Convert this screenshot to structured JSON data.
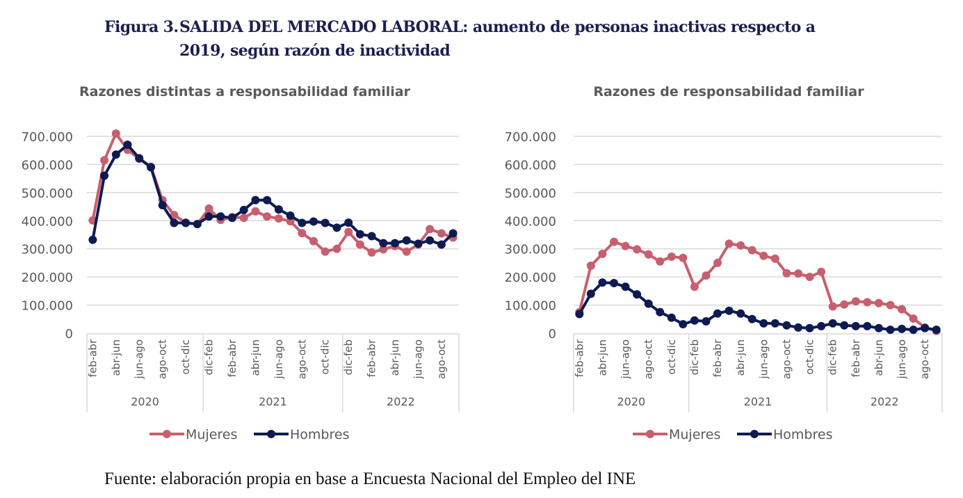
{
  "figure": {
    "number_label": "Figura 3.",
    "title_line1": "SALIDA DEL MERCADO LABORAL: aumento de personas inactivas respecto a",
    "title_line2": "2019, según razón de inactividad"
  },
  "footer": {
    "source_label": "Fuente:",
    "source_text": " elaboración propia en base a Encuesta Nacional del Empleo del INE"
  },
  "colors": {
    "mujeres": "#c85f6e",
    "hombres": "#0e1a52",
    "grid": "#d9d9d9",
    "text": "#595959"
  },
  "chart_data": [
    {
      "type": "line",
      "title": "Razones distintas a responsabilidad familiar",
      "xlabel": "",
      "ylabel": "",
      "ylim": [
        0,
        700000
      ],
      "yticks": [
        0,
        100000,
        200000,
        300000,
        400000,
        500000,
        600000,
        700000
      ],
      "ytick_labels": [
        "0",
        "100.000",
        "200.000",
        "300.000",
        "400.000",
        "500.000",
        "600.000",
        "700.000"
      ],
      "grid": true,
      "legend": "bottom",
      "n_points": 32,
      "x_tick_labels": [
        {
          "index": 0,
          "label": "feb-abr"
        },
        {
          "index": 2,
          "label": "abr-jun"
        },
        {
          "index": 4,
          "label": "jun-ago"
        },
        {
          "index": 6,
          "label": "ago-oct"
        },
        {
          "index": 8,
          "label": "oct-dic"
        },
        {
          "index": 10,
          "label": "dic-feb"
        },
        {
          "index": 12,
          "label": "feb-abr"
        },
        {
          "index": 14,
          "label": "abr-jun"
        },
        {
          "index": 16,
          "label": "jun-ago"
        },
        {
          "index": 18,
          "label": "ago-oct"
        },
        {
          "index": 20,
          "label": "oct-dic"
        },
        {
          "index": 22,
          "label": "dic-feb"
        },
        {
          "index": 24,
          "label": "feb-abr"
        },
        {
          "index": 26,
          "label": "abr-jun"
        },
        {
          "index": 28,
          "label": "jun-ago"
        },
        {
          "index": 30,
          "label": "ago-oct"
        }
      ],
      "year_groups": [
        {
          "label": "2020",
          "start": 0,
          "end": 9
        },
        {
          "label": "2021",
          "start": 10,
          "end": 21
        },
        {
          "label": "2022",
          "start": 22,
          "end": 31
        }
      ],
      "series": [
        {
          "name": "Mujeres",
          "color": "#c85f6e",
          "values": [
            401000,
            615000,
            710000,
            652000,
            620000,
            592000,
            473000,
            420000,
            393000,
            388000,
            443000,
            403000,
            413000,
            410000,
            433000,
            415000,
            408000,
            398000,
            356000,
            327000,
            290000,
            300000,
            360000,
            315000,
            287000,
            298000,
            310000,
            290000,
            315000,
            370000,
            355000,
            340000
          ]
        },
        {
          "name": "Hombres",
          "color": "#0e1a52",
          "values": [
            332000,
            560000,
            635000,
            670000,
            622000,
            590000,
            455000,
            392000,
            392000,
            388000,
            415000,
            415000,
            410000,
            438000,
            473000,
            473000,
            440000,
            418000,
            392000,
            397000,
            392000,
            375000,
            393000,
            352000,
            345000,
            320000,
            320000,
            330000,
            318000,
            330000,
            315000,
            355000
          ]
        }
      ]
    },
    {
      "type": "line",
      "title": "Razones de responsabilidad familiar",
      "xlabel": "",
      "ylabel": "",
      "ylim": [
        0,
        700000
      ],
      "yticks": [
        0,
        100000,
        200000,
        300000,
        400000,
        500000,
        600000,
        700000
      ],
      "ytick_labels": [
        "0",
        "100.000",
        "200.000",
        "300.000",
        "400.000",
        "500.000",
        "600.000",
        "700.000"
      ],
      "grid": true,
      "legend": "bottom",
      "n_points": 32,
      "x_tick_labels": [
        {
          "index": 0,
          "label": "feb-abr"
        },
        {
          "index": 2,
          "label": "abr-jun"
        },
        {
          "index": 4,
          "label": "jun-ago"
        },
        {
          "index": 6,
          "label": "ago-oct"
        },
        {
          "index": 8,
          "label": "oct-dic"
        },
        {
          "index": 10,
          "label": "dic-feb"
        },
        {
          "index": 12,
          "label": "feb-abr"
        },
        {
          "index": 14,
          "label": "abr-jun"
        },
        {
          "index": 16,
          "label": "jun-ago"
        },
        {
          "index": 18,
          "label": "ago-oct"
        },
        {
          "index": 20,
          "label": "oct-dic"
        },
        {
          "index": 22,
          "label": "dic-feb"
        },
        {
          "index": 24,
          "label": "feb-abr"
        },
        {
          "index": 26,
          "label": "abr-jun"
        },
        {
          "index": 28,
          "label": "jun-ago"
        },
        {
          "index": 30,
          "label": "ago-oct"
        }
      ],
      "year_groups": [
        {
          "label": "2020",
          "start": 0,
          "end": 9
        },
        {
          "label": "2021",
          "start": 10,
          "end": 21
        },
        {
          "label": "2022",
          "start": 22,
          "end": 31
        }
      ],
      "series": [
        {
          "name": "Mujeres",
          "color": "#c85f6e",
          "values": [
            75000,
            240000,
            282000,
            325000,
            310000,
            298000,
            280000,
            255000,
            272000,
            268000,
            165000,
            205000,
            250000,
            318000,
            312000,
            295000,
            275000,
            265000,
            213000,
            212000,
            200000,
            218000,
            95000,
            102000,
            113000,
            110000,
            107000,
            100000,
            85000,
            52000,
            20000,
            8000
          ]
        },
        {
          "name": "Hombres",
          "color": "#0e1a52",
          "values": [
            68000,
            140000,
            180000,
            178000,
            165000,
            138000,
            105000,
            75000,
            55000,
            32000,
            45000,
            42000,
            70000,
            80000,
            70000,
            50000,
            35000,
            35000,
            28000,
            20000,
            18000,
            25000,
            35000,
            28000,
            25000,
            25000,
            18000,
            12000,
            15000,
            12000,
            18000,
            12000
          ]
        }
      ]
    }
  ]
}
